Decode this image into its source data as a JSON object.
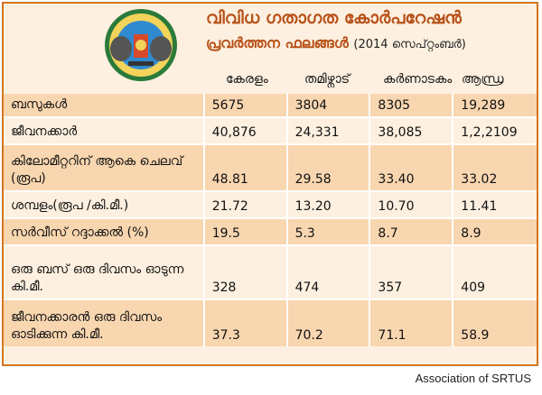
{
  "title": "വിവിധ ഗതാഗത കോർപറേഷൻ",
  "subtitle": "പ്രവർത്തന ഫലങ്ങൾ",
  "subtitle_note": "(2014 സെപ്റ്റംബർ)",
  "logo": {
    "icon": "ksrtc-emblem"
  },
  "columns": [
    "കേരളം",
    "തമിഴ്നാട്",
    "കർണാടകം",
    "ആന്ധ്ര"
  ],
  "rows": [
    {
      "label": "ബസുകൾ",
      "values": [
        "5675",
        "3804",
        "8305",
        "19,289"
      ]
    },
    {
      "label": "ജീവനക്കാർ",
      "values": [
        "40,876",
        "24,331",
        "38,085",
        "1,2,2109"
      ]
    },
    {
      "label": "കിലോമീറ്ററിന് ആകെ ചെലവ് (രൂപ)",
      "values": [
        "48.81",
        "29.58",
        "33.40",
        "33.02"
      ]
    },
    {
      "label": "ശമ്പളം(രൂപ /കി.മീ.)",
      "values": [
        "21.72",
        "13.20",
        "10.70",
        "11.41"
      ]
    },
    {
      "label": "സർവീസ് റദ്ദാക്കൽ (%)",
      "values": [
        "19.5",
        "5.3",
        "8.7",
        "8.9"
      ]
    },
    {
      "label": "ഒരു ബസ് ഒരു ദിവസം ഓടുന്ന കി.മീ.",
      "values": [
        "328",
        "474",
        "357",
        "409"
      ]
    },
    {
      "label": "ജീവനക്കാരൻ ഒരു ദിവസം ഓടിക്കുന്ന കി.മീ.",
      "values": [
        "37.3",
        "70.2",
        "71.1",
        "58.9"
      ]
    }
  ],
  "source": "Association of SRTUS",
  "colors": {
    "border": "#d5741f",
    "title": "#b8521a",
    "alt_row": "#f8d6b0",
    "bg": "#fdf0e0"
  }
}
